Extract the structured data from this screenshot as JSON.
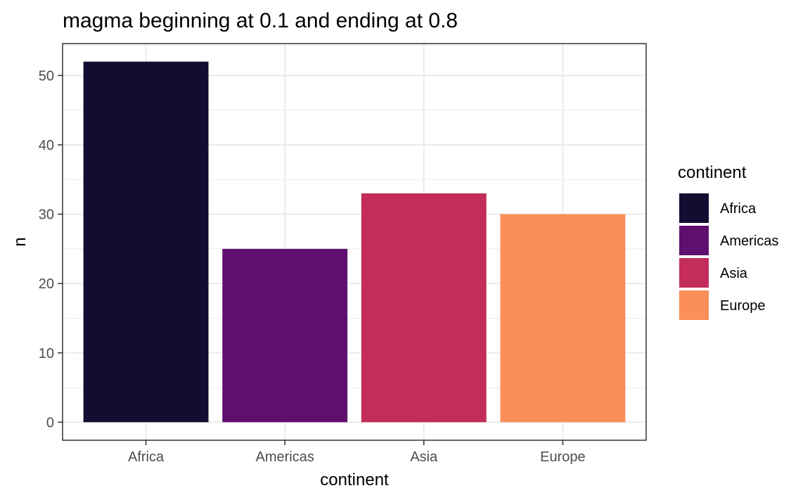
{
  "chart_data": {
    "type": "bar",
    "title": "magma beginning at 0.1 and ending at 0.8",
    "xlabel": "continent",
    "ylabel": "n",
    "categories": [
      "Africa",
      "Americas",
      "Asia",
      "Europe"
    ],
    "values": [
      52,
      25,
      33,
      30
    ],
    "colors": [
      "#120d31",
      "#5f0f6f",
      "#c42c5b",
      "#fc8e5a"
    ],
    "ylim": [
      -2.6,
      54.6
    ],
    "yticks": [
      0,
      10,
      20,
      30,
      40,
      50
    ],
    "yticks_minor": [
      5,
      15,
      25,
      35,
      45
    ],
    "grid": true,
    "legend": {
      "title": "continent",
      "placement": "right",
      "items": [
        "Africa",
        "Americas",
        "Asia",
        "Europe"
      ]
    }
  }
}
